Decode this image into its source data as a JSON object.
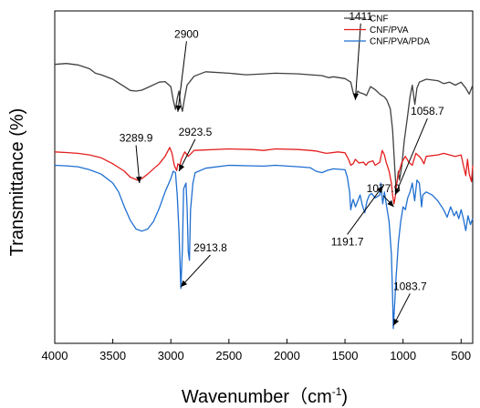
{
  "chart_data": {
    "type": "line",
    "xlabel": "Wavenumber（cm",
    "xlabel_sup": "-1",
    "xlabel_close": ")",
    "ylabel": "Transmittance (%)",
    "xlim": [
      4000,
      400
    ],
    "x_ticks": [
      4000,
      3500,
      3000,
      2500,
      2000,
      1500,
      1000,
      500
    ],
    "y_ticks_shown": false,
    "legend_position": "top-right",
    "series": [
      {
        "name": "CNF",
        "color": "#404040",
        "points": [
          [
            4000,
            64
          ],
          [
            3900,
            64.3
          ],
          [
            3800,
            63.8
          ],
          [
            3700,
            62.5
          ],
          [
            3650,
            61
          ],
          [
            3600,
            60.5
          ],
          [
            3500,
            59
          ],
          [
            3400,
            56.5
          ],
          [
            3350,
            55.2
          ],
          [
            3300,
            55
          ],
          [
            3250,
            55.3
          ],
          [
            3200,
            56.2
          ],
          [
            3100,
            58
          ],
          [
            3050,
            58.2
          ],
          [
            3000,
            56.5
          ],
          [
            2980,
            52
          ],
          [
            2960,
            48.8
          ],
          [
            2945,
            52.5
          ],
          [
            2930,
            55
          ],
          [
            2915,
            50.5
          ],
          [
            2900,
            48.2
          ],
          [
            2885,
            52
          ],
          [
            2860,
            57
          ],
          [
            2800,
            60
          ],
          [
            2700,
            61.5
          ],
          [
            2500,
            61
          ],
          [
            2350,
            60.5
          ],
          [
            2200,
            60.8
          ],
          [
            2100,
            61
          ],
          [
            1900,
            60.8
          ],
          [
            1800,
            60.5
          ],
          [
            1700,
            60.2
          ],
          [
            1640,
            59.5
          ],
          [
            1600,
            59.8
          ],
          [
            1500,
            59.2
          ],
          [
            1450,
            58
          ],
          [
            1430,
            54.5
          ],
          [
            1411,
            52.8
          ],
          [
            1390,
            55
          ],
          [
            1375,
            54.5
          ],
          [
            1335,
            54
          ],
          [
            1315,
            53.5
          ],
          [
            1280,
            56.5
          ],
          [
            1240,
            55.5
          ],
          [
            1200,
            54
          ],
          [
            1160,
            53
          ],
          [
            1140,
            52
          ],
          [
            1110,
            49
          ],
          [
            1090,
            42
          ],
          [
            1070,
            28
          ],
          [
            1060,
            22
          ],
          [
            1040,
            28
          ],
          [
            1030,
            25
          ],
          [
            1010,
            30
          ],
          [
            990,
            38
          ],
          [
            960,
            47
          ],
          [
            940,
            53
          ],
          [
            920,
            57
          ],
          [
            898,
            50.5
          ],
          [
            880,
            56
          ],
          [
            860,
            58
          ],
          [
            800,
            59
          ],
          [
            700,
            58.5
          ],
          [
            650,
            57.5
          ],
          [
            600,
            58
          ],
          [
            550,
            57
          ],
          [
            500,
            58
          ],
          [
            460,
            56
          ],
          [
            430,
            54
          ],
          [
            400,
            57
          ]
        ]
      },
      {
        "name": "CNF/PVA",
        "color": "#e41e1e",
        "points": [
          [
            4000,
            34.5
          ],
          [
            3900,
            34.3
          ],
          [
            3800,
            34
          ],
          [
            3700,
            33.5
          ],
          [
            3600,
            32.5
          ],
          [
            3500,
            30.5
          ],
          [
            3400,
            28
          ],
          [
            3350,
            26
          ],
          [
            3300,
            25.2
          ],
          [
            3289.9,
            25
          ],
          [
            3250,
            25.5
          ],
          [
            3200,
            27
          ],
          [
            3100,
            30.5
          ],
          [
            3050,
            33
          ],
          [
            3010,
            36
          ],
          [
            2990,
            34
          ],
          [
            2970,
            30
          ],
          [
            2950,
            28.2
          ],
          [
            2940,
            30.5
          ],
          [
            2923.5,
            29.8
          ],
          [
            2910,
            32
          ],
          [
            2880,
            34.5
          ],
          [
            2850,
            33
          ],
          [
            2800,
            35
          ],
          [
            2500,
            35.5
          ],
          [
            2300,
            35.3
          ],
          [
            2200,
            35
          ],
          [
            2100,
            35.5
          ],
          [
            1900,
            35.3
          ],
          [
            1800,
            35
          ],
          [
            1750,
            34.8
          ],
          [
            1720,
            34.5
          ],
          [
            1660,
            34
          ],
          [
            1560,
            34.5
          ],
          [
            1500,
            34.2
          ],
          [
            1470,
            32
          ],
          [
            1450,
            30
          ],
          [
            1430,
            30.5
          ],
          [
            1411,
            32
          ],
          [
            1380,
            30.8
          ],
          [
            1340,
            31
          ],
          [
            1320,
            30
          ],
          [
            1300,
            31
          ],
          [
            1260,
            31.5
          ],
          [
            1240,
            30
          ],
          [
            1200,
            31
          ],
          [
            1180,
            35
          ],
          [
            1160,
            33.5
          ],
          [
            1145,
            31
          ],
          [
            1120,
            28
          ],
          [
            1100,
            24
          ],
          [
            1090,
            20
          ],
          [
            1077.9,
            17
          ],
          [
            1065,
            20
          ],
          [
            1058.7,
            23
          ],
          [
            1040,
            27
          ],
          [
            1010,
            31
          ],
          [
            980,
            33
          ],
          [
            950,
            31
          ],
          [
            920,
            30
          ],
          [
            890,
            34
          ],
          [
            860,
            33
          ],
          [
            840,
            32
          ],
          [
            820,
            30.5
          ],
          [
            800,
            33
          ],
          [
            700,
            33.5
          ],
          [
            650,
            34
          ],
          [
            600,
            33.5
          ],
          [
            550,
            33
          ],
          [
            500,
            33.5
          ],
          [
            480,
            30
          ],
          [
            460,
            26.5
          ],
          [
            445,
            32
          ],
          [
            430,
            27
          ],
          [
            410,
            24.5
          ],
          [
            400,
            30
          ]
        ]
      },
      {
        "name": "CNF/PVA/PDA",
        "color": "#1f6fd1",
        "points": [
          [
            4000,
            30
          ],
          [
            3900,
            29.8
          ],
          [
            3800,
            29.5
          ],
          [
            3700,
            28.5
          ],
          [
            3600,
            27
          ],
          [
            3500,
            24
          ],
          [
            3450,
            21
          ],
          [
            3400,
            16
          ],
          [
            3350,
            11.5
          ],
          [
            3300,
            8.5
          ],
          [
            3250,
            7.8
          ],
          [
            3200,
            8.5
          ],
          [
            3150,
            11
          ],
          [
            3100,
            15.5
          ],
          [
            3050,
            21
          ],
          [
            3000,
            25.5
          ],
          [
            2980,
            28
          ],
          [
            2960,
            27.5
          ],
          [
            2945,
            20
          ],
          [
            2930,
            8
          ],
          [
            2913.8,
            -11.5
          ],
          [
            2900,
            2
          ],
          [
            2890,
            22
          ],
          [
            2870,
            24
          ],
          [
            2860,
            16
          ],
          [
            2850,
            1
          ],
          [
            2840,
            -2
          ],
          [
            2830,
            15
          ],
          [
            2810,
            24
          ],
          [
            2790,
            27.5
          ],
          [
            2700,
            29
          ],
          [
            2500,
            30
          ],
          [
            2300,
            29.8
          ],
          [
            2200,
            29.7
          ],
          [
            2100,
            30
          ],
          [
            1900,
            29.5
          ],
          [
            1800,
            29.2
          ],
          [
            1750,
            28
          ],
          [
            1700,
            27.5
          ],
          [
            1650,
            28.3
          ],
          [
            1600,
            28.8
          ],
          [
            1500,
            28.5
          ],
          [
            1480,
            26
          ],
          [
            1460,
            21
          ],
          [
            1450,
            15
          ],
          [
            1440,
            17
          ],
          [
            1430,
            18.5
          ],
          [
            1410,
            16
          ],
          [
            1390,
            18
          ],
          [
            1370,
            20
          ],
          [
            1350,
            16.5
          ],
          [
            1330,
            14
          ],
          [
            1310,
            18
          ],
          [
            1290,
            20
          ],
          [
            1270,
            20.5
          ],
          [
            1240,
            19
          ],
          [
            1200,
            20
          ],
          [
            1191.7,
            24
          ],
          [
            1175,
            17
          ],
          [
            1160,
            21
          ],
          [
            1145,
            17
          ],
          [
            1120,
            11
          ],
          [
            1100,
            0
          ],
          [
            1090,
            -14
          ],
          [
            1083.7,
            -25
          ],
          [
            1070,
            -15
          ],
          [
            1060,
            -8
          ],
          [
            1050,
            -2
          ],
          [
            1040,
            4
          ],
          [
            1020,
            11
          ],
          [
            1000,
            16
          ],
          [
            980,
            15
          ],
          [
            960,
            19
          ],
          [
            940,
            21
          ],
          [
            920,
            24
          ],
          [
            900,
            18
          ],
          [
            880,
            25
          ],
          [
            860,
            24
          ],
          [
            850,
            20
          ],
          [
            840,
            16
          ],
          [
            830,
            20
          ],
          [
            800,
            21
          ],
          [
            750,
            20
          ],
          [
            700,
            18
          ],
          [
            650,
            15
          ],
          [
            620,
            12.5
          ],
          [
            590,
            16
          ],
          [
            560,
            13
          ],
          [
            540,
            14.5
          ],
          [
            520,
            12
          ],
          [
            500,
            15
          ],
          [
            480,
            12
          ],
          [
            460,
            8
          ],
          [
            440,
            13
          ],
          [
            420,
            10
          ],
          [
            400,
            12
          ]
        ]
      }
    ],
    "annotations": [
      {
        "label": "2900",
        "tip": [
          2940,
          48
        ],
        "text_at": [
          2865,
          73
        ]
      },
      {
        "label": "1411",
        "tip": [
          1411,
          52
        ],
        "text_at": [
          1365,
          79
        ]
      },
      {
        "label": "3289.9",
        "tip": [
          3270,
          24
        ],
        "text_at": [
          3300,
          38
        ]
      },
      {
        "label": "2923.5",
        "tip": [
          2930,
          28
        ],
        "text_at": [
          2790,
          40
        ]
      },
      {
        "label": "1058.7",
        "tip": [
          1068,
          20
        ],
        "text_at": [
          790,
          47
        ]
      },
      {
        "label": "1077.9",
        "tip": [
          1080,
          16
        ],
        "text_at": [
          1170,
          21
        ]
      },
      {
        "label": "1191.7",
        "tip": [
          1175,
          23
        ],
        "text_at": [
          1480,
          3
        ]
      },
      {
        "label": "2913.8",
        "tip": [
          2915,
          -11
        ],
        "text_at": [
          2660,
          1
        ]
      },
      {
        "label": "1083.7",
        "tip": [
          1083,
          -24
        ],
        "text_at": [
          940,
          -12
        ]
      }
    ]
  }
}
